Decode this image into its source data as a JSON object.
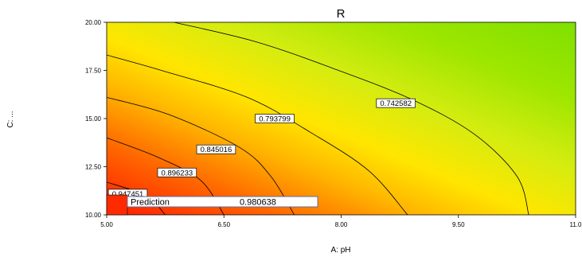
{
  "chart_data": {
    "type": "contour",
    "title": "R",
    "xlabel": "A: pH",
    "ylabel": "C: ...",
    "xlim": [
      5.0,
      11.0
    ],
    "ylim": [
      10.0,
      20.0
    ],
    "x_ticks": [
      "5.00",
      "6.50",
      "8.00",
      "9.50",
      "11.0"
    ],
    "y_ticks": [
      "10.00",
      "12.50",
      "15.00",
      "17.50",
      "20.00"
    ],
    "colormap": {
      "low": "#7fe600",
      "mid": "#ffe600",
      "high": "#ff1a00"
    },
    "contours": [
      {
        "label": "0.742582",
        "points": [
          [
            5.86,
            20.0
          ],
          [
            6.9,
            19.0
          ],
          [
            7.9,
            17.6
          ],
          [
            8.9,
            16.0
          ],
          [
            9.7,
            14.2
          ],
          [
            10.25,
            12.0
          ],
          [
            10.4,
            10.0
          ]
        ]
      },
      {
        "label": "0.793799",
        "points": [
          [
            5.0,
            18.3
          ],
          [
            5.7,
            17.5
          ],
          [
            6.8,
            16.1
          ],
          [
            7.6,
            14.3
          ],
          [
            8.35,
            12.3
          ],
          [
            8.85,
            10.0
          ]
        ]
      },
      {
        "label": "0.845016",
        "points": [
          [
            5.0,
            16.1
          ],
          [
            5.8,
            15.2
          ],
          [
            6.7,
            13.5
          ],
          [
            7.1,
            12.0
          ],
          [
            7.4,
            10.0
          ]
        ]
      },
      {
        "label": "0.896233",
        "points": [
          [
            5.0,
            14.0
          ],
          [
            5.65,
            13.0
          ],
          [
            6.2,
            11.8
          ],
          [
            6.5,
            10.0
          ]
        ]
      },
      {
        "label": "0.947451",
        "points": [
          [
            5.0,
            11.7
          ],
          [
            5.5,
            11.0
          ],
          [
            5.75,
            10.0
          ]
        ]
      }
    ],
    "prediction": {
      "label": "Prediction",
      "value": "0.980638",
      "x": 5.25,
      "y": 10.0
    }
  }
}
